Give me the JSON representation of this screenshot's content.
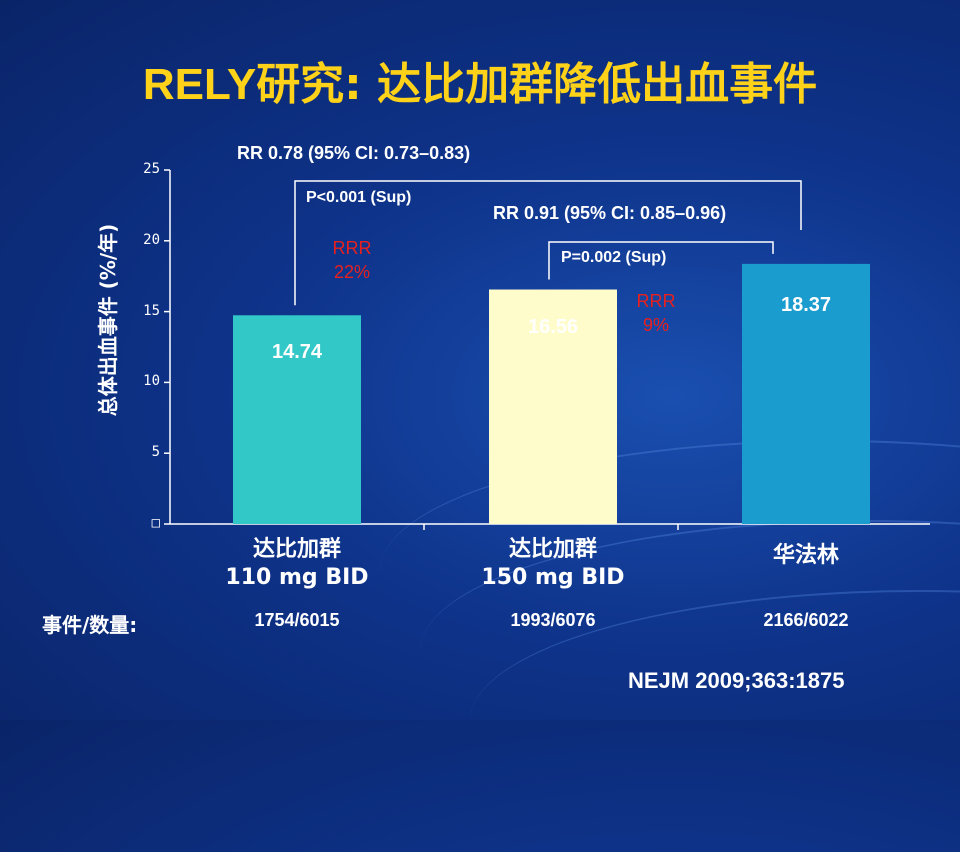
{
  "slide": {
    "title_eng": "RELY",
    "title_rest": "研究: 达比加群降低出血事件",
    "reference": "NEJM 2009;363:1875"
  },
  "chart_data": {
    "type": "bar",
    "ylabel": "总体出血事件 (%/年)",
    "ylim": [
      0,
      25
    ],
    "y_ticks": [
      "□",
      "5",
      "10",
      "15",
      "20",
      "25"
    ],
    "categories": [
      {
        "line1": "达比加群",
        "line2": "110 mg BID"
      },
      {
        "line1": "达比加群",
        "line2": "150 mg BID"
      },
      {
        "line1": "华法林",
        "line2": ""
      }
    ],
    "values": [
      14.74,
      16.56,
      18.37
    ],
    "value_labels": [
      "14.74",
      "16.56",
      "18.37"
    ],
    "colors": [
      "#33c8c8",
      "#fffccc",
      "#1a9cce"
    ],
    "label_colors": [
      "#ffffff",
      "#000000",
      "#ffffff"
    ],
    "events_label": "事件/数量:",
    "events": [
      "1754/6015",
      "1993/6076",
      "2166/6022"
    ],
    "comparisons": [
      {
        "rr": "RR 0.78 (95% CI: 0.73–0.83)",
        "p": "P<0.001 (Sup)",
        "rrr_line1": "RRR",
        "rrr_line2": "22%"
      },
      {
        "rr": "RR 0.91 (95% CI: 0.85–0.96)",
        "p": "P=0.002 (Sup)",
        "rrr_line1": "RRR",
        "rrr_line2": "9%"
      }
    ]
  }
}
